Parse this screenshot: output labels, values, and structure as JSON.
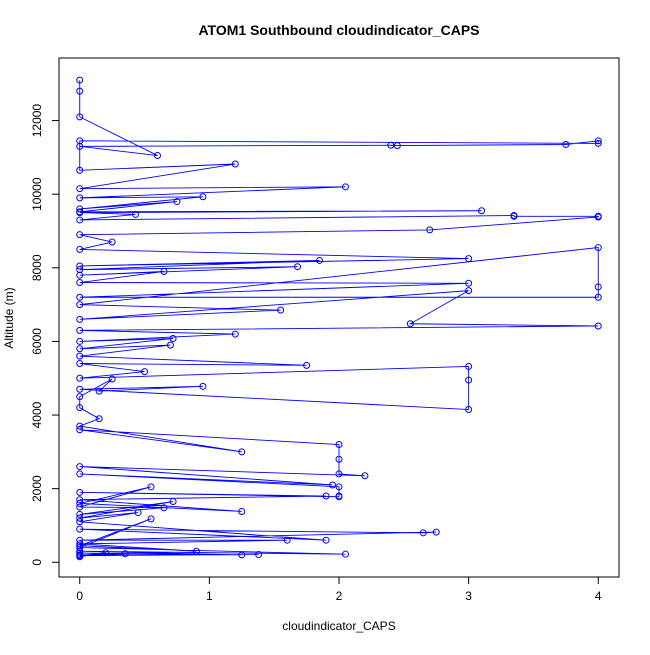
{
  "chart_data": {
    "type": "line",
    "title": "ATOM1 Southbound cloudindicator_CAPS",
    "x_label": "cloudindicator_CAPS",
    "y_label": "Altitude (m)",
    "x": [
      0,
      0,
      0,
      0.6,
      0,
      2.4,
      2.45,
      3.75,
      4,
      4,
      0,
      0,
      1.2,
      0,
      2.05,
      0,
      0.95,
      0,
      0.75,
      0,
      3.1,
      0,
      0.43,
      0,
      3.35,
      3.35,
      4,
      4,
      2.7,
      0,
      0.25,
      0,
      3,
      0,
      1.85,
      0,
      1.68,
      0,
      0.65,
      0,
      3,
      0,
      4,
      4,
      4,
      0,
      1.55,
      0,
      3,
      2.55,
      4,
      0,
      1.2,
      0,
      0.72,
      0,
      0.7,
      0,
      1.75,
      0,
      0.5,
      0,
      3,
      3,
      3,
      0,
      0.95,
      0.15,
      0.25,
      0,
      0,
      0.15,
      0,
      1.25,
      0,
      2,
      2,
      2,
      2.2,
      0,
      1.95,
      0,
      2,
      2,
      2,
      0,
      1.9,
      0,
      1.25,
      0,
      0.55,
      0,
      0.65,
      0,
      0.72,
      0,
      0.45,
      0,
      1.9,
      0,
      2.65,
      2.75,
      0,
      1.6,
      0,
      0.9,
      0,
      0.55,
      0,
      2.05,
      0,
      1.25,
      0,
      0.35,
      0,
      1.38,
      0,
      0.2,
      0
    ],
    "series": [
      {
        "color": "#0000ff",
        "values": [
          13100,
          12800,
          12100,
          11050,
          11300,
          11330,
          11320,
          11350,
          11450,
          11380,
          11450,
          10650,
          10820,
          10150,
          10200,
          9900,
          9930,
          9600,
          9800,
          9520,
          9550,
          9500,
          9450,
          9300,
          9420,
          9400,
          9400,
          9380,
          9030,
          8900,
          8700,
          8500,
          8250,
          8050,
          8200,
          7950,
          8030,
          7800,
          7900,
          7600,
          7580,
          7200,
          7200,
          7480,
          8550,
          7000,
          6850,
          6600,
          7380,
          6480,
          6420,
          6300,
          6200,
          6000,
          6080,
          5800,
          5900,
          5600,
          5350,
          5400,
          5180,
          5000,
          5320,
          4950,
          4150,
          4700,
          4780,
          4650,
          4980,
          4500,
          4200,
          3900,
          3700,
          3000,
          3600,
          3200,
          2800,
          2400,
          2350,
          2600,
          2100,
          2400,
          2050,
          1800,
          1780,
          1900,
          1800,
          1700,
          1380,
          1600,
          2050,
          1500,
          1480,
          1300,
          1650,
          1200,
          1350,
          1100,
          600,
          900,
          800,
          820,
          600,
          600,
          500,
          300,
          450,
          1180,
          400,
          220,
          300,
          200,
          250,
          230,
          200,
          210,
          180,
          260,
          150
        ]
      }
    ],
    "xlim": [
      -0.16,
      4.16
    ],
    "xticks": [
      0,
      1,
      2,
      3,
      4
    ],
    "ylim": [
      -400,
      13700
    ],
    "yticks": [
      0,
      2000,
      4000,
      6000,
      8000,
      10000,
      12000
    ],
    "grid": false
  }
}
